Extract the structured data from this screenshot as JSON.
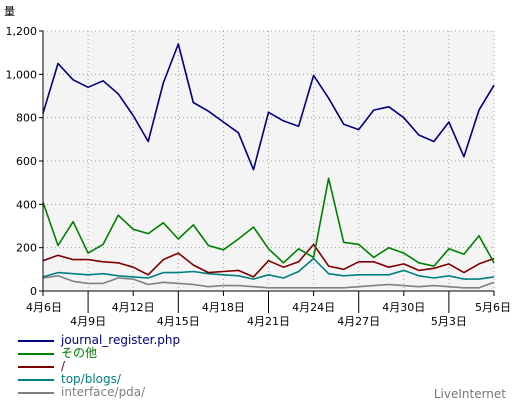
{
  "chart_data": {
    "type": "line",
    "ylabel": "量",
    "ylim": [
      0,
      1200
    ],
    "yticks": [
      0,
      200,
      400,
      600,
      800,
      1000,
      1200
    ],
    "ytick_labels": [
      "0",
      "200",
      "400",
      "600",
      "800",
      "1,000",
      "1,200"
    ],
    "grid": true,
    "x": [
      "4月6日",
      "4月7日",
      "4月8日",
      "4月9日",
      "4月10日",
      "4月11日",
      "4月12日",
      "4月13日",
      "4月14日",
      "4月15日",
      "4月16日",
      "4月17日",
      "4月18日",
      "4月19日",
      "4月20日",
      "4月21日",
      "4月22日",
      "4月23日",
      "4月24日",
      "4月25日",
      "4月26日",
      "4月27日",
      "4月28日",
      "4月29日",
      "4月30日",
      "5月1日",
      "5月2日",
      "5月3日",
      "5月4日",
      "5月5日",
      "5月6日"
    ],
    "xtick_labels_row1": [
      {
        "index": 0,
        "label": "4月6日"
      },
      {
        "index": 6,
        "label": "4月12日"
      },
      {
        "index": 12,
        "label": "4月18日"
      },
      {
        "index": 18,
        "label": "4月24日"
      },
      {
        "index": 24,
        "label": "4月30日"
      },
      {
        "index": 30,
        "label": "5月6日"
      }
    ],
    "xtick_labels_row2": [
      {
        "index": 3,
        "label": "4月9日"
      },
      {
        "index": 9,
        "label": "4月15日"
      },
      {
        "index": 15,
        "label": "4月21日"
      },
      {
        "index": 21,
        "label": "4月27日"
      },
      {
        "index": 27,
        "label": "5月3日"
      }
    ],
    "series": [
      {
        "name": "journal_register.php",
        "color": "#000080",
        "values": [
          820,
          1050,
          975,
          940,
          970,
          910,
          810,
          690,
          960,
          1140,
          870,
          830,
          780,
          730,
          560,
          825,
          785,
          760,
          995,
          890,
          770,
          745,
          835,
          850,
          800,
          720,
          690,
          780,
          620,
          835,
          950
        ]
      },
      {
        "name": "その他",
        "color": "#008000",
        "values": [
          410,
          210,
          320,
          175,
          215,
          350,
          285,
          265,
          315,
          240,
          305,
          210,
          190,
          240,
          295,
          195,
          130,
          195,
          155,
          520,
          225,
          215,
          155,
          200,
          175,
          130,
          115,
          195,
          170,
          255,
          130
        ]
      },
      {
        "name": "/",
        "color": "#800000",
        "values": [
          140,
          165,
          145,
          145,
          135,
          130,
          110,
          75,
          145,
          175,
          120,
          85,
          90,
          95,
          65,
          140,
          110,
          135,
          215,
          115,
          100,
          135,
          135,
          110,
          125,
          95,
          105,
          125,
          85,
          125,
          150
        ]
      },
      {
        "name": "top/blogs/",
        "color": "#008080",
        "values": [
          65,
          85,
          80,
          75,
          80,
          70,
          65,
          60,
          85,
          85,
          90,
          80,
          75,
          70,
          55,
          75,
          60,
          90,
          150,
          80,
          70,
          75,
          75,
          75,
          95,
          70,
          60,
          70,
          55,
          55,
          65
        ]
      },
      {
        "name": "interface/pda/",
        "color": "#808080",
        "values": [
          60,
          70,
          45,
          35,
          35,
          60,
          55,
          30,
          40,
          35,
          30,
          20,
          25,
          25,
          20,
          15,
          15,
          15,
          15,
          15,
          15,
          20,
          25,
          30,
          25,
          20,
          25,
          20,
          15,
          15,
          40
        ]
      }
    ]
  },
  "brand": "LiveInternet"
}
